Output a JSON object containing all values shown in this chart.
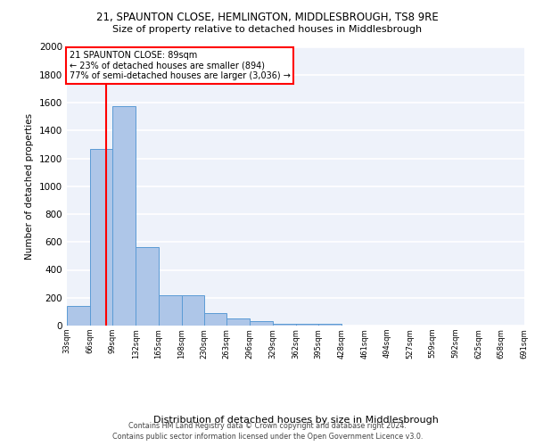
{
  "title_line1": "21, SPAUNTON CLOSE, HEMLINGTON, MIDDLESBROUGH, TS8 9RE",
  "title_line2": "Size of property relative to detached houses in Middlesbrough",
  "xlabel": "Distribution of detached houses by size in Middlesbrough",
  "ylabel": "Number of detached properties",
  "footer_line1": "Contains HM Land Registry data © Crown copyright and database right 2024.",
  "footer_line2": "Contains public sector information licensed under the Open Government Licence v3.0.",
  "annotation_line1": "21 SPAUNTON CLOSE: 89sqm",
  "annotation_line2": "← 23% of detached houses are smaller (894)",
  "annotation_line3": "77% of semi-detached houses are larger (3,036) →",
  "property_size_sqm": 89,
  "bin_edges": [
    33,
    66,
    99,
    132,
    165,
    198,
    230,
    263,
    296,
    329,
    362,
    395,
    428,
    461,
    494,
    527,
    559,
    592,
    625,
    658,
    691
  ],
  "bar_heights": [
    140,
    1265,
    1575,
    565,
    220,
    220,
    90,
    50,
    30,
    15,
    15,
    10,
    0,
    0,
    0,
    0,
    0,
    0,
    0,
    0
  ],
  "bar_color": "#aec6e8",
  "bar_edge_color": "#5b9bd5",
  "vline_color": "red",
  "vline_x": 89,
  "ylim": [
    0,
    2000
  ],
  "yticks": [
    0,
    200,
    400,
    600,
    800,
    1000,
    1200,
    1400,
    1600,
    1800,
    2000
  ],
  "bg_color": "#eef2fa",
  "grid_color": "white",
  "tick_labels": [
    "33sqm",
    "66sqm",
    "99sqm",
    "132sqm",
    "165sqm",
    "198sqm",
    "230sqm",
    "263sqm",
    "296sqm",
    "329sqm",
    "362sqm",
    "395sqm",
    "428sqm",
    "461sqm",
    "494sqm",
    "527sqm",
    "559sqm",
    "592sqm",
    "625sqm",
    "658sqm",
    "691sqm"
  ]
}
